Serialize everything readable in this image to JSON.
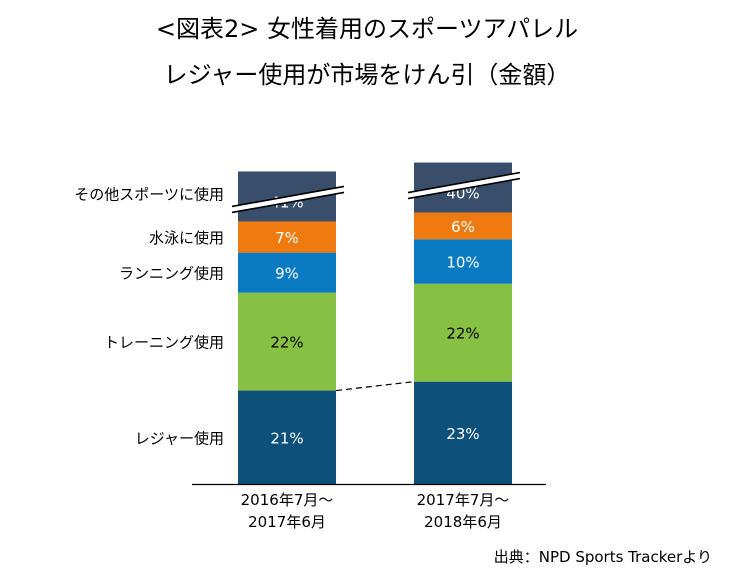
{
  "title_line1": "<図表2> 女性着用のスポーツアパレル",
  "title_line2": "レジャー使用が市場をけん引（金額）",
  "source": "出典：NPD Sports Trackerより",
  "chart_data": {
    "type": "bar",
    "stacked": true,
    "categories": [
      [
        "2016年7月～",
        "2017年6月"
      ],
      [
        "2017年7月～",
        "2018年6月"
      ]
    ],
    "series": [
      {
        "name": "レジャー使用",
        "values": [
          21,
          23
        ],
        "labels": [
          "21%",
          "23%"
        ],
        "color": "#0d5079",
        "label_color": "#ffffff"
      },
      {
        "name": "トレーニング使用",
        "values": [
          22,
          22
        ],
        "labels": [
          "22%",
          "22%"
        ],
        "color": "#86c144",
        "label_color": "#000000"
      },
      {
        "name": "ランニング使用",
        "values": [
          9,
          10
        ],
        "labels": [
          "9%",
          "10%"
        ],
        "color": "#0a7ac2",
        "label_color": "#ffffff"
      },
      {
        "name": "水泳に使用",
        "values": [
          7,
          6
        ],
        "labels": [
          "7%",
          "6%"
        ],
        "color": "#ef7b10",
        "label_color": "#ffffff"
      },
      {
        "name": "その他スポーツに使用",
        "values": [
          41,
          40
        ],
        "labels": [
          "41%",
          "40%"
        ],
        "color": "#384e6b",
        "label_color": "#ffffff",
        "axis_break": true
      }
    ],
    "connector": "dashed line between tops of レジャー使用 segments",
    "unit": "%"
  }
}
